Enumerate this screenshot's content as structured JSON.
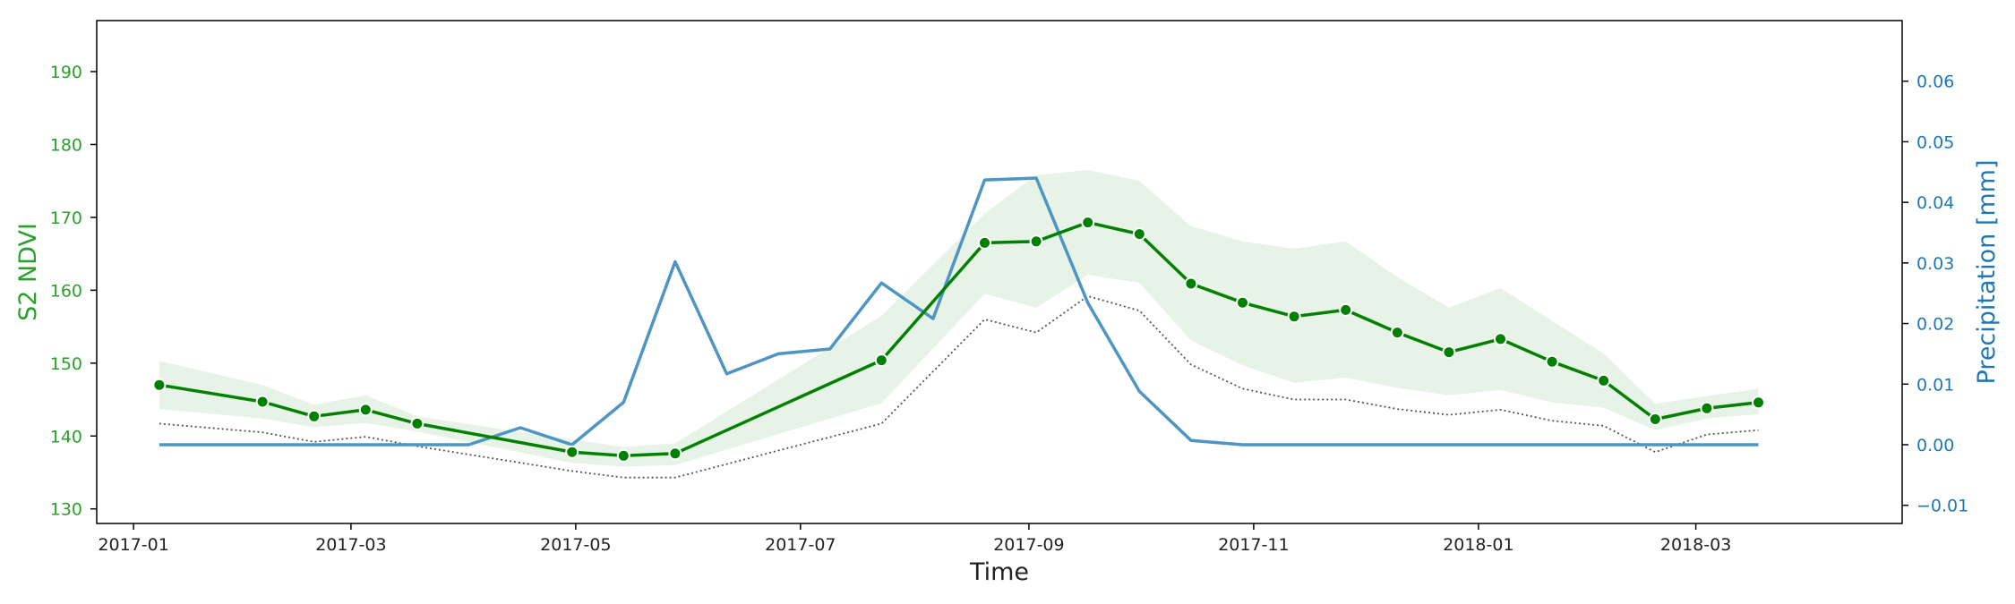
{
  "chart_data": {
    "type": "line",
    "title": "",
    "xlabel": "Time",
    "ylabel_left": "S2 NDVI",
    "ylabel_right": "Precipitation [mm]",
    "xlim_days": [
      -10,
      480
    ],
    "ylim_left": [
      128,
      197
    ],
    "ylim_right": [
      -0.013,
      0.07
    ],
    "x_ticks": [
      {
        "label": "2017-01",
        "day": 0
      },
      {
        "label": "2017-03",
        "day": 59
      },
      {
        "label": "2017-05",
        "day": 120
      },
      {
        "label": "2017-07",
        "day": 181
      },
      {
        "label": "2017-09",
        "day": 243
      },
      {
        "label": "2017-11",
        "day": 304
      },
      {
        "label": "2018-01",
        "day": 365
      },
      {
        "label": "2018-03",
        "day": 424
      }
    ],
    "y_ticks_left": [
      {
        "label": "130",
        "value": 130
      },
      {
        "label": "140",
        "value": 140
      },
      {
        "label": "150",
        "value": 150
      },
      {
        "label": "160",
        "value": 160
      },
      {
        "label": "170",
        "value": 170
      },
      {
        "label": "180",
        "value": 180
      },
      {
        "label": "190",
        "value": 190
      }
    ],
    "y_ticks_right": [
      {
        "label": "−0.01",
        "value": -0.01
      },
      {
        "label": "0.00",
        "value": 0.0
      },
      {
        "label": "0.01",
        "value": 0.01
      },
      {
        "label": "0.02",
        "value": 0.02
      },
      {
        "label": "0.03",
        "value": 0.03
      },
      {
        "label": "0.04",
        "value": 0.04
      },
      {
        "label": "0.05",
        "value": 0.05
      },
      {
        "label": "0.06",
        "value": 0.06
      }
    ],
    "series": [
      {
        "name": "S2 NDVI",
        "axis": "left",
        "style": "line-markers",
        "color": "#008000",
        "x": [
          7,
          35,
          49,
          63,
          77,
          119,
          133,
          147,
          203,
          231,
          245,
          259,
          273,
          287,
          301,
          315,
          329,
          343,
          357,
          371,
          385,
          399,
          413,
          427,
          441
        ],
        "values": [
          147.0,
          144.7,
          142.7,
          143.6,
          141.7,
          137.8,
          137.3,
          137.6,
          150.4,
          166.5,
          166.7,
          169.3,
          167.7,
          160.9,
          158.3,
          156.4,
          157.3,
          154.2,
          151.5,
          153.3,
          150.2,
          147.6,
          142.3,
          143.8,
          144.6
        ]
      },
      {
        "name": "NDVI band upper",
        "axis": "left",
        "style": "band-upper",
        "color": "#e6f3e6",
        "x": [
          7,
          35,
          49,
          63,
          77,
          119,
          133,
          147,
          203,
          231,
          245,
          259,
          273,
          287,
          301,
          315,
          329,
          343,
          357,
          371,
          385,
          399,
          413,
          427,
          441
        ],
        "values": [
          150.3,
          147.0,
          144.3,
          145.6,
          142.7,
          139.5,
          138.5,
          139.0,
          156.5,
          170.5,
          175.8,
          176.5,
          175.0,
          168.8,
          166.7,
          165.7,
          166.7,
          161.8,
          157.6,
          160.3,
          155.8,
          151.3,
          144.4,
          145.5,
          146.5
        ]
      },
      {
        "name": "NDVI band lower",
        "axis": "left",
        "style": "band-lower",
        "color": "#e6f3e6",
        "x": [
          7,
          35,
          49,
          63,
          77,
          119,
          133,
          147,
          203,
          231,
          245,
          259,
          273,
          287,
          301,
          315,
          329,
          343,
          357,
          371,
          385,
          399,
          413,
          427,
          441
        ],
        "values": [
          143.7,
          142.4,
          141.2,
          141.8,
          140.6,
          136.3,
          135.8,
          136.0,
          144.5,
          159.5,
          157.6,
          162.1,
          161.0,
          153.1,
          149.7,
          147.3,
          148.0,
          146.6,
          145.6,
          146.3,
          144.6,
          143.9,
          140.8,
          142.4,
          143.0
        ]
      },
      {
        "name": "NDVI lower dotted",
        "axis": "left",
        "style": "dotted",
        "color": "#555555",
        "x": [
          7,
          35,
          49,
          63,
          77,
          119,
          133,
          147,
          203,
          231,
          245,
          259,
          273,
          287,
          301,
          315,
          329,
          343,
          357,
          371,
          385,
          399,
          413,
          427,
          441
        ],
        "values": [
          141.7,
          140.5,
          139.2,
          139.9,
          138.6,
          135.2,
          134.3,
          134.3,
          141.7,
          156.0,
          154.2,
          159.2,
          157.2,
          149.8,
          146.5,
          145.0,
          145.0,
          143.7,
          142.9,
          143.6,
          142.1,
          141.4,
          137.8,
          140.2,
          140.8
        ]
      },
      {
        "name": "Precipitation",
        "axis": "right",
        "style": "line",
        "color": "#4f95c4",
        "x": [
          7,
          21,
          35,
          49,
          63,
          77,
          91,
          105,
          119,
          133,
          147,
          161,
          175,
          189,
          203,
          217,
          231,
          245,
          259,
          273,
          287,
          301,
          315,
          329,
          343,
          357,
          371,
          385,
          399,
          413,
          427,
          441
        ],
        "values": [
          0.0,
          0.0,
          0.0,
          0.0,
          0.0,
          0.0,
          0.0,
          0.0028,
          0.0,
          0.007,
          0.0302,
          0.0117,
          0.015,
          0.0158,
          0.0267,
          0.0208,
          0.0437,
          0.044,
          0.0234,
          0.0088,
          0.0007,
          0.0,
          0.0,
          0.0,
          0.0,
          0.0,
          0.0,
          0.0,
          0.0,
          0.0,
          0.0,
          0.0
        ]
      }
    ],
    "colors": {
      "left_axis": "#2ca02c",
      "right_axis": "#1f77b4",
      "text": "#222222",
      "frame": "#000000"
    }
  }
}
